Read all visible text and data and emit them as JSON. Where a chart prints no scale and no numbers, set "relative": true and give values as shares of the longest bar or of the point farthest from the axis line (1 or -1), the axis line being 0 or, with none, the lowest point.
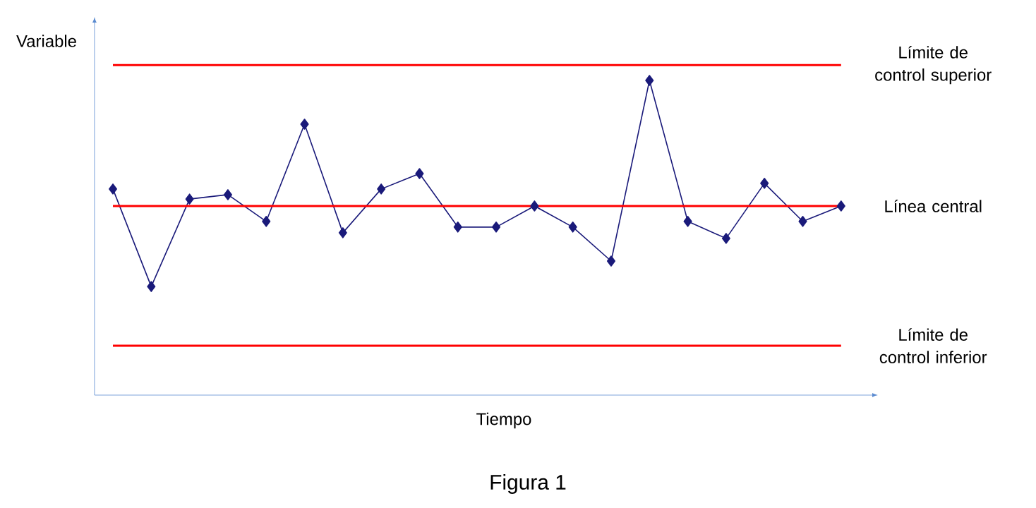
{
  "chart_data": {
    "type": "line",
    "relative": true,
    "xlabel": "Tiempo",
    "ylabel": "Variable",
    "categories": [
      null,
      null,
      null,
      null,
      null,
      null,
      null,
      null,
      null,
      null,
      null,
      null,
      null,
      null,
      null,
      null,
      null,
      null,
      null,
      null
    ],
    "series": [
      {
        "color": "#1a1a7a",
        "values": [
          0.655,
          0.345,
          0.623,
          0.637,
          0.552,
          0.861,
          0.516,
          0.655,
          0.704,
          0.534,
          0.534,
          0.601,
          0.534,
          0.426,
          1,
          0.552,
          0.498,
          0.673,
          0.552,
          0.601
        ]
      }
    ],
    "marker": "diamond",
    "ref_lines": [
      {
        "axis": "y",
        "value": 1.049,
        "label": "Límite de control superior",
        "color": "#ff0000"
      },
      {
        "axis": "y",
        "value": 0.601,
        "label": "Línea central",
        "color": "#ff0000"
      },
      {
        "axis": "y",
        "value": 0.157,
        "label": "Límite de control inferior",
        "color": "#ff0000"
      }
    ],
    "annotations": [
      "Figura 1"
    ]
  }
}
